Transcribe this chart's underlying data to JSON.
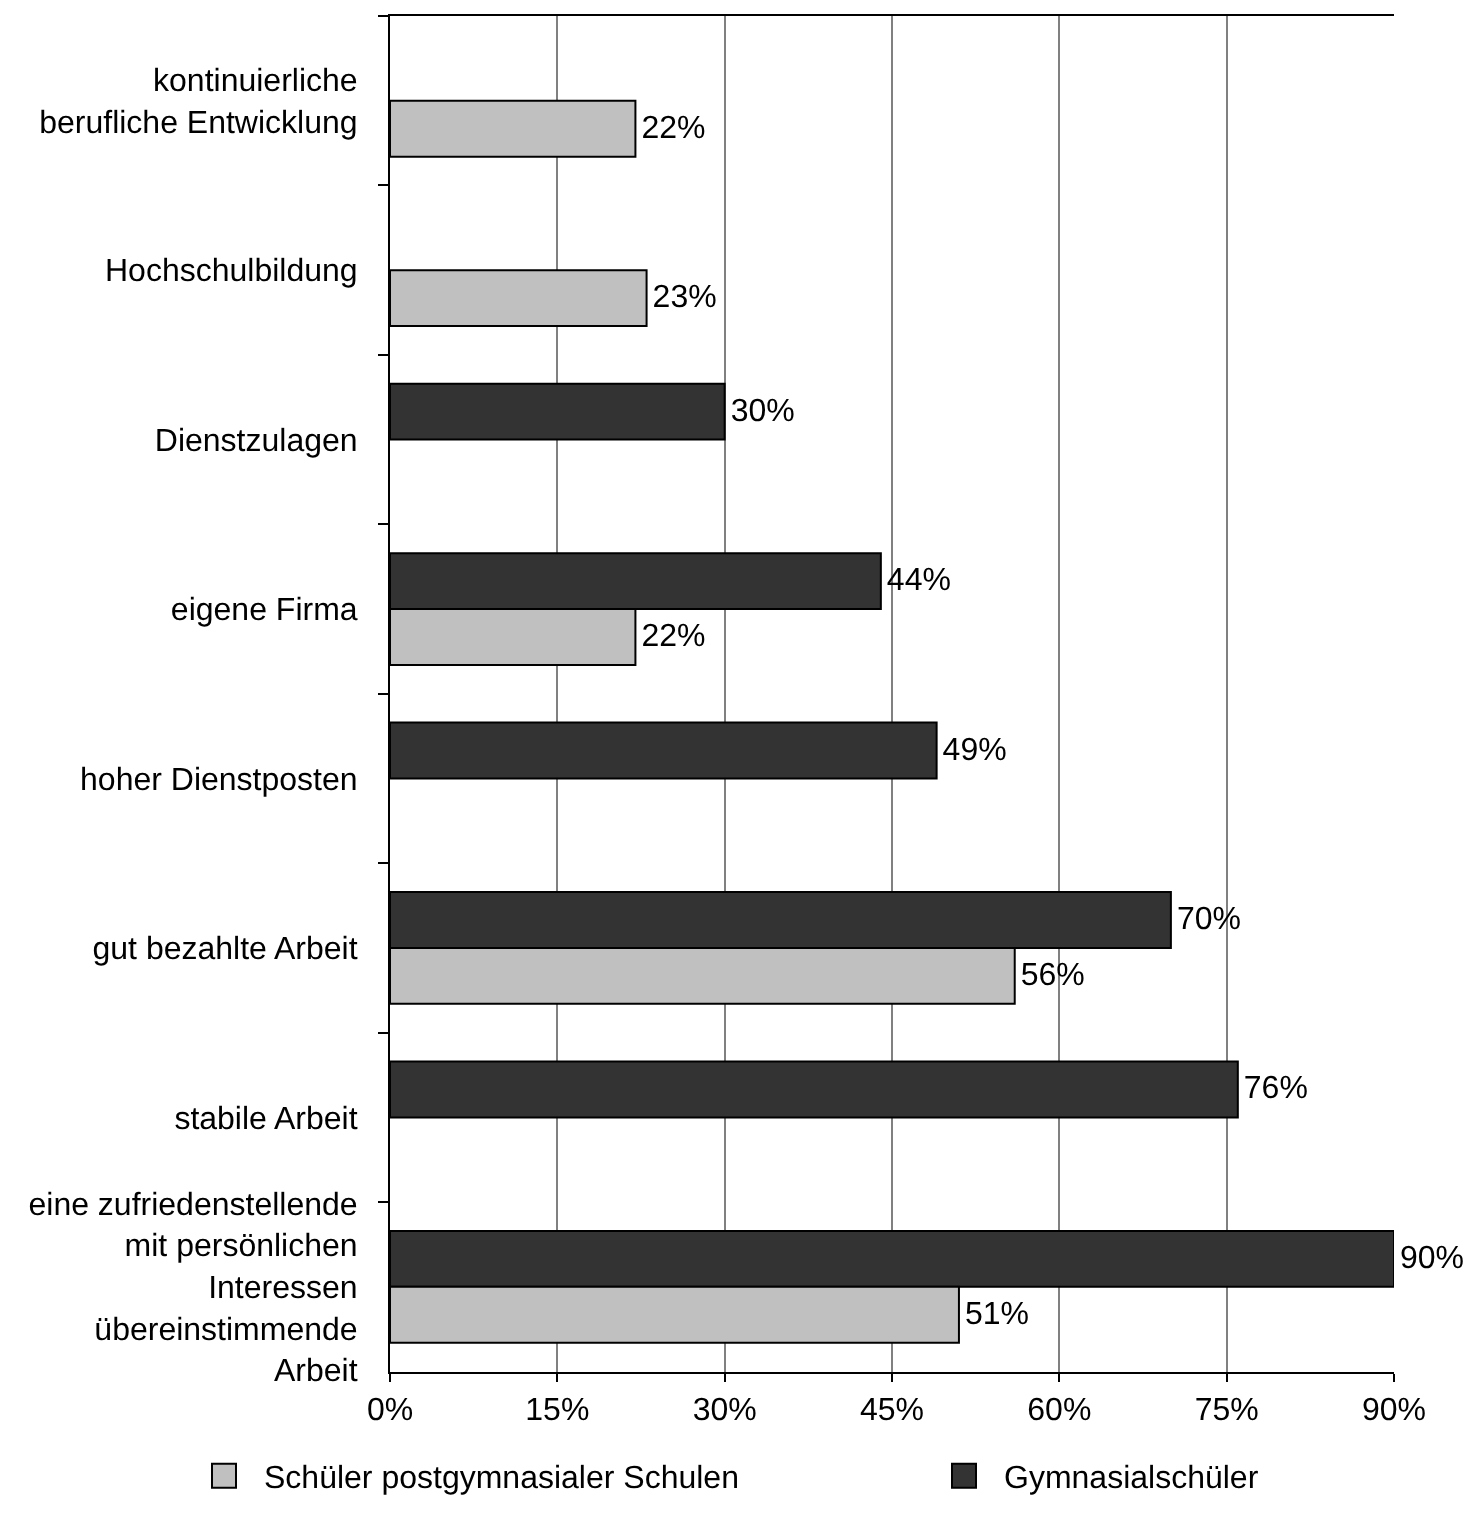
{
  "chart_data": {
    "type": "bar",
    "orientation": "horizontal",
    "categories": [
      "kontinuierliche\nberufliche Entwicklung",
      "Hochschulbildung",
      "Dienstzulagen",
      "eigene Firma",
      "hoher Dienstposten",
      "gut bezahlte Arbeit",
      "stabile Arbeit",
      "eine zufriedenstellende\nmit persönlichen\nInteressen\nübereinstimmende\nArbeit"
    ],
    "series": [
      {
        "name": "Schüler postgymnasialer Schulen",
        "color": "#c0c0c0",
        "values": [
          22,
          23,
          null,
          22,
          null,
          56,
          null,
          51
        ],
        "value_labels": [
          "22%",
          "23%",
          null,
          "22%",
          null,
          "56%",
          null,
          "51%"
        ]
      },
      {
        "name": "Gymnasialschüler",
        "color": "#333333",
        "values": [
          null,
          null,
          30,
          44,
          49,
          70,
          76,
          90
        ],
        "value_labels": [
          null,
          null,
          "30%",
          "44%",
          "49%",
          "70%",
          "76%",
          "90%"
        ]
      }
    ],
    "xlim": [
      0,
      90
    ],
    "xticks": [
      {
        "value": 0,
        "label": "0%"
      },
      {
        "value": 15,
        "label": "15%"
      },
      {
        "value": 30,
        "label": "30%"
      },
      {
        "value": 45,
        "label": "45%"
      },
      {
        "value": 60,
        "label": "60%"
      },
      {
        "value": 75,
        "label": "75%"
      },
      {
        "value": 90,
        "label": "90%"
      }
    ],
    "grid": "x",
    "legend": "bottom"
  }
}
